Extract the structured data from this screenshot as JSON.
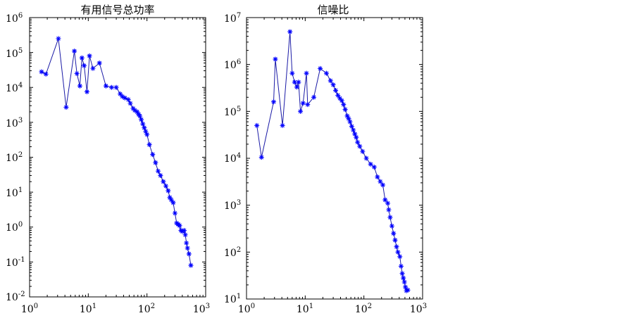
{
  "chart_data": [
    {
      "type": "line",
      "title": "有用信号总功率",
      "xlabel": "",
      "ylabel": "",
      "xscale": "log",
      "yscale": "log",
      "xlim": [
        1,
        1000
      ],
      "ylim": [
        0.01,
        1000000
      ],
      "x_ticks": [
        {
          "base": "10",
          "exp": "0"
        },
        {
          "base": "10",
          "exp": "1"
        },
        {
          "base": "10",
          "exp": "2"
        },
        {
          "base": "10",
          "exp": "3"
        }
      ],
      "y_ticks": [
        {
          "base": "10",
          "exp": "-2"
        },
        {
          "base": "10",
          "exp": "-1"
        },
        {
          "base": "10",
          "exp": "0"
        },
        {
          "base": "10",
          "exp": "1"
        },
        {
          "base": "10",
          "exp": "2"
        },
        {
          "base": "10",
          "exp": "3"
        },
        {
          "base": "10",
          "exp": "4"
        },
        {
          "base": "10",
          "exp": "5"
        },
        {
          "base": "10",
          "exp": "6"
        }
      ],
      "grid": false,
      "legend": "none",
      "series_color": "#0000ff",
      "x": [
        1.6,
        1.9,
        3.1,
        4.2,
        5.8,
        6.4,
        7.2,
        7.8,
        8.5,
        9.5,
        10.5,
        12,
        15.5,
        20,
        25,
        30,
        35,
        38,
        42,
        48,
        52,
        58,
        62,
        68,
        72,
        76,
        80,
        85,
        90,
        95,
        100,
        110,
        125,
        140,
        155,
        170,
        190,
        210,
        230,
        245,
        260,
        280,
        300,
        320,
        340,
        360,
        380,
        400,
        430,
        450,
        470,
        490,
        520,
        560
      ],
      "y": [
        28000,
        24000,
        250000,
        2700,
        110000,
        25000,
        11000,
        70000,
        42000,
        7500,
        80000,
        35000,
        50000,
        11000,
        10000,
        10000,
        6500,
        5500,
        5000,
        4500,
        3500,
        2500,
        2200,
        2000,
        1700,
        1500,
        1200,
        900,
        700,
        550,
        450,
        230,
        120,
        70,
        40,
        30,
        20,
        15,
        11,
        7,
        6,
        5,
        2.5,
        1.3,
        1.2,
        1.1,
        0.8,
        0.75,
        0.8,
        0.6,
        0.35,
        0.25,
        0.17,
        0.08
      ]
    },
    {
      "type": "line",
      "title": "信噪比",
      "xlabel": "",
      "ylabel": "",
      "xscale": "log",
      "yscale": "log",
      "xlim": [
        1,
        1000
      ],
      "ylim": [
        10,
        10000000
      ],
      "x_ticks": [
        {
          "base": "10",
          "exp": "0"
        },
        {
          "base": "10",
          "exp": "1"
        },
        {
          "base": "10",
          "exp": "2"
        },
        {
          "base": "10",
          "exp": "3"
        }
      ],
      "y_ticks": [
        {
          "base": "10",
          "exp": "1"
        },
        {
          "base": "10",
          "exp": "2"
        },
        {
          "base": "10",
          "exp": "3"
        },
        {
          "base": "10",
          "exp": "4"
        },
        {
          "base": "10",
          "exp": "5"
        },
        {
          "base": "10",
          "exp": "6"
        },
        {
          "base": "10",
          "exp": "7"
        }
      ],
      "grid": false,
      "legend": "none",
      "series_color": "#0000ff",
      "x": [
        1.5,
        1.8,
        2.9,
        3.1,
        4.1,
        5.5,
        6,
        6.6,
        7.2,
        7.7,
        8.3,
        9.2,
        10.5,
        11,
        14,
        18,
        23,
        27,
        30,
        33,
        36,
        39,
        42,
        45,
        48,
        52,
        55,
        58,
        62,
        66,
        70,
        74,
        78,
        85,
        95,
        110,
        130,
        150,
        170,
        190,
        210,
        230,
        255,
        265,
        280,
        300,
        320,
        340,
        360,
        380,
        410,
        430,
        450,
        470,
        490,
        510,
        530,
        560
      ],
      "y": [
        50000,
        10500,
        160000,
        1300000,
        50000,
        5000000,
        650000,
        420000,
        330000,
        420000,
        100000,
        150000,
        650000,
        140000,
        200000,
        820000,
        650000,
        450000,
        370000,
        280000,
        220000,
        190000,
        170000,
        140000,
        110000,
        80000,
        70000,
        60000,
        48000,
        40000,
        33000,
        28000,
        22000,
        18000,
        14000,
        10000,
        7500,
        6500,
        4000,
        3200,
        2700,
        1300,
        1100,
        800,
        550,
        360,
        250,
        180,
        130,
        100,
        80,
        50,
        35,
        28,
        23,
        18,
        15,
        15.5
      ]
    }
  ]
}
